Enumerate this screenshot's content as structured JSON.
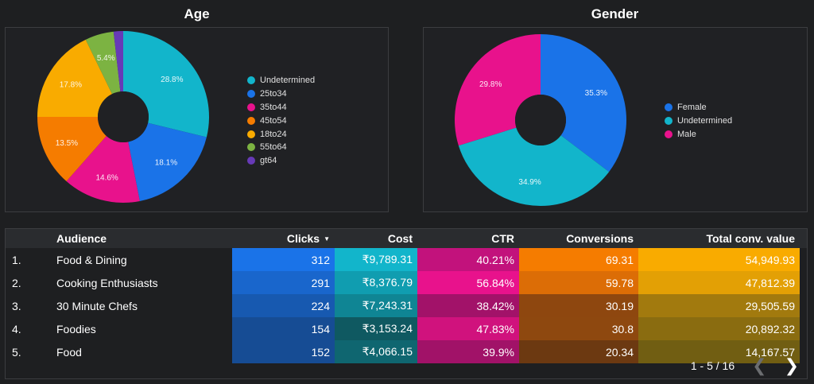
{
  "chart_data": [
    {
      "type": "pie",
      "title": "Age",
      "donut": true,
      "slices": [
        {
          "label": "Undetermined",
          "value": 28.8,
          "display": "28.8%",
          "color": "#12b5cb"
        },
        {
          "label": "25to34",
          "value": 18.1,
          "display": "18.1%",
          "color": "#1a73e8"
        },
        {
          "label": "35to44",
          "value": 14.6,
          "display": "14.6%",
          "color": "#e8128c"
        },
        {
          "label": "45to54",
          "value": 13.5,
          "display": "13.5%",
          "color": "#f57c00"
        },
        {
          "label": "18to24",
          "value": 17.8,
          "display": "17.8%",
          "color": "#f9ab00"
        },
        {
          "label": "55to64",
          "value": 5.4,
          "display": "5.4%",
          "color": "#7cb342"
        },
        {
          "label": "gt64",
          "value": 1.8,
          "display": "",
          "color": "#673ab7"
        }
      ],
      "legend_position": "right"
    },
    {
      "type": "pie",
      "title": "Gender",
      "donut": true,
      "slices": [
        {
          "label": "Female",
          "value": 35.3,
          "display": "35.3%",
          "color": "#1a73e8"
        },
        {
          "label": "Undetermined",
          "value": 34.9,
          "display": "34.9%",
          "color": "#12b5cb"
        },
        {
          "label": "Male",
          "value": 29.8,
          "display": "29.8%",
          "color": "#e8128c"
        }
      ],
      "legend_position": "right"
    }
  ],
  "table": {
    "headers": {
      "index": "",
      "audience": "Audience",
      "clicks": "Clicks",
      "cost": "Cost",
      "ctr": "CTR",
      "conversions": "Conversions",
      "total_conv_value": "Total conv. value"
    },
    "sort_indicator": "▼",
    "rows": [
      {
        "index": "1.",
        "audience": "Food & Dining",
        "clicks": "312",
        "cost": "₹9,789.31",
        "ctr": "40.21%",
        "conversions": "69.31",
        "total_conv_value": "54,949.93"
      },
      {
        "index": "2.",
        "audience": "Cooking Enthusiasts",
        "clicks": "291",
        "cost": "₹8,376.79",
        "ctr": "56.84%",
        "conversions": "59.78",
        "total_conv_value": "47,812.39"
      },
      {
        "index": "3.",
        "audience": "30 Minute Chefs",
        "clicks": "224",
        "cost": "₹7,243.31",
        "ctr": "38.42%",
        "conversions": "30.19",
        "total_conv_value": "29,505.59"
      },
      {
        "index": "4.",
        "audience": "Foodies",
        "clicks": "154",
        "cost": "₹3,153.24",
        "ctr": "47.83%",
        "conversions": "30.8",
        "total_conv_value": "20,892.32"
      },
      {
        "index": "5.",
        "audience": "Food",
        "clicks": "152",
        "cost": "₹4,066.15",
        "ctr": "39.9%",
        "conversions": "20.34",
        "total_conv_value": "14,167.57"
      }
    ],
    "cell_colors": {
      "clicks": [
        "#1a73e8",
        "#1966cc",
        "#1759b0",
        "#164c94",
        "#164c94"
      ],
      "cost": [
        "#12b5cb",
        "#109db0",
        "#0f8594",
        "#0f5961",
        "#0f6670"
      ],
      "ctr": [
        "#c2127c",
        "#e8128c",
        "#a21269",
        "#d0127d",
        "#a11268"
      ],
      "conversions": [
        "#f57c00",
        "#dc6d06",
        "#8e470f",
        "#8e480f",
        "#6c3911"
      ],
      "total_conv_value": [
        "#f9ab00",
        "#e3a005",
        "#a27a0e",
        "#8a6c10",
        "#715e12"
      ]
    }
  },
  "pager": {
    "text": "1 - 5 / 16",
    "prev": "❮",
    "next": "❯"
  }
}
